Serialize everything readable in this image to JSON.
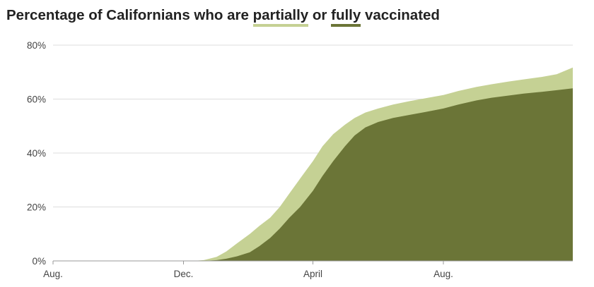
{
  "chart_data": {
    "type": "area",
    "title": {
      "prefix": "Percentage of Californians who are ",
      "partial_word": "partially",
      "middle": " or ",
      "full_word": "fully",
      "suffix": " vaccinated"
    },
    "xlabel": "",
    "ylabel": "",
    "ylim": [
      0,
      80
    ],
    "yticks": [
      {
        "value": 0,
        "label": "0%"
      },
      {
        "value": 20,
        "label": "20%"
      },
      {
        "value": 40,
        "label": "40%"
      },
      {
        "value": 60,
        "label": "60%"
      },
      {
        "value": 80,
        "label": "80%"
      }
    ],
    "xlim": [
      "2020-08-01",
      "2021-11-30"
    ],
    "xticks": [
      {
        "date": "2020-08-01",
        "label": "Aug."
      },
      {
        "date": "2020-12-01",
        "label": "Dec."
      },
      {
        "date": "2021-04-01",
        "label": "April"
      },
      {
        "date": "2021-08-01",
        "label": "Aug."
      }
    ],
    "grid": true,
    "legend": "title",
    "colors": {
      "partial": "#c5d194",
      "full": "#6b7537",
      "grid": "#dddddd",
      "axis": "#999999"
    },
    "series": [
      {
        "key": "partial",
        "x": [
          "2020-12-10",
          "2020-12-20",
          "2021-01-01",
          "2021-01-10",
          "2021-01-20",
          "2021-02-01",
          "2021-02-10",
          "2021-02-20",
          "2021-03-01",
          "2021-03-10",
          "2021-03-20",
          "2021-04-01",
          "2021-04-10",
          "2021-04-20",
          "2021-05-01",
          "2021-05-10",
          "2021-05-20",
          "2021-06-01",
          "2021-06-15",
          "2021-07-01",
          "2021-07-15",
          "2021-08-01",
          "2021-08-15",
          "2021-09-01",
          "2021-09-15",
          "2021-10-01",
          "2021-10-15",
          "2021-11-01",
          "2021-11-15",
          "2021-11-30"
        ],
        "values": [
          0,
          0.3,
          1.5,
          3.5,
          6.5,
          10,
          13,
          16,
          20,
          25,
          30.5,
          37,
          42.5,
          47,
          50.5,
          53,
          55,
          56.5,
          58,
          59.3,
          60.3,
          61.5,
          63,
          64.5,
          65.5,
          66.5,
          67.3,
          68.2,
          69.2,
          71.7
        ]
      },
      {
        "key": "full",
        "x": [
          "2020-12-20",
          "2021-01-01",
          "2021-01-10",
          "2021-01-20",
          "2021-02-01",
          "2021-02-10",
          "2021-02-20",
          "2021-03-01",
          "2021-03-10",
          "2021-03-20",
          "2021-04-01",
          "2021-04-10",
          "2021-04-20",
          "2021-05-01",
          "2021-05-10",
          "2021-05-20",
          "2021-06-01",
          "2021-06-15",
          "2021-07-01",
          "2021-07-15",
          "2021-08-01",
          "2021-08-15",
          "2021-09-01",
          "2021-09-15",
          "2021-10-01",
          "2021-10-15",
          "2021-11-01",
          "2021-11-15",
          "2021-11-30"
        ],
        "values": [
          0,
          0.3,
          0.8,
          1.7,
          3.2,
          5.5,
          8.5,
          12,
          16,
          20,
          26,
          31.5,
          37,
          42.5,
          46.5,
          49.5,
          51.5,
          53,
          54.2,
          55.2,
          56.5,
          58,
          59.5,
          60.5,
          61.3,
          62,
          62.7,
          63.3,
          64
        ]
      }
    ]
  }
}
